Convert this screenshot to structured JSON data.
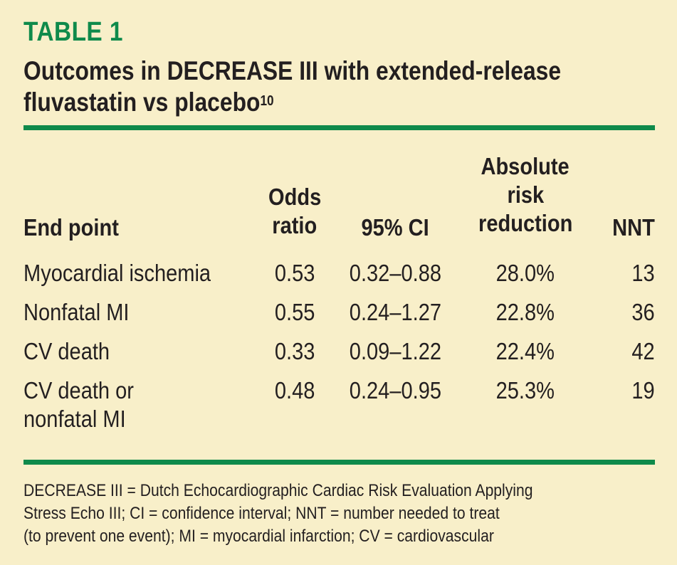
{
  "table_label": "TABLE 1",
  "title_main": "Outcomes in DECREASE III with extended-release",
  "title_line2": "fluvastatin vs placebo",
  "title_ref": "10",
  "columns": {
    "end_point": "End point",
    "odds_ratio_1": "Odds",
    "odds_ratio_2": "ratio",
    "ci": "95% CI",
    "arr_1": "Absolute",
    "arr_2": "risk",
    "arr_3": "reduction",
    "nnt": "NNT"
  },
  "rows": [
    {
      "end_point": "Myocardial ischemia",
      "end_point_2": "",
      "odds_ratio": "0.53",
      "ci": "0.32–0.88",
      "arr": "28.0%",
      "nnt": "13"
    },
    {
      "end_point": "Nonfatal MI",
      "end_point_2": "",
      "odds_ratio": "0.55",
      "ci": "0.24–1.27",
      "arr": "22.8%",
      "nnt": "36"
    },
    {
      "end_point": "CV death",
      "end_point_2": "",
      "odds_ratio": "0.33",
      "ci": "0.09–1.22",
      "arr": "22.4%",
      "nnt": "42"
    },
    {
      "end_point": "CV death or",
      "end_point_2": "nonfatal MI",
      "odds_ratio": "0.48",
      "ci": "0.24–0.95",
      "arr": "25.3%",
      "nnt": "19"
    }
  ],
  "footnote_lines": [
    "DECREASE III = Dutch Echocardiographic Cardiac Risk Evaluation Applying",
    "Stress Echo III; CI = confidence interval; NNT = number needed to treat",
    "(to prevent one event); MI = myocardial infarction; CV = cardiovascular"
  ],
  "colors": {
    "background": "#f8efc9",
    "accent_green": "#0f8a4b",
    "text": "#231f20"
  }
}
